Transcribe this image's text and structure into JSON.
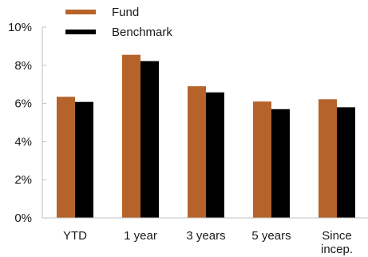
{
  "chart_data": {
    "type": "bar",
    "categories": [
      "YTD",
      "1 year",
      "3 years",
      "5 years",
      "Since incep."
    ],
    "category_lines": [
      [
        "YTD"
      ],
      [
        "1 year"
      ],
      [
        "3 years"
      ],
      [
        "5 years"
      ],
      [
        "Since",
        "incep."
      ]
    ],
    "series": [
      {
        "name": "Fund",
        "color": "#B5632A",
        "values": [
          6.35,
          8.55,
          6.9,
          6.1,
          6.22
        ]
      },
      {
        "name": "Benchmark",
        "color": "#000000",
        "values": [
          6.08,
          8.22,
          6.58,
          5.7,
          5.8
        ]
      }
    ],
    "ylim": [
      0,
      10
    ],
    "yticks": [
      0,
      2,
      4,
      6,
      8,
      10
    ],
    "ytick_labels": [
      "0%",
      "2%",
      "4%",
      "6%",
      "8%",
      "10%"
    ],
    "grid": false,
    "legend_position": "top-left"
  }
}
